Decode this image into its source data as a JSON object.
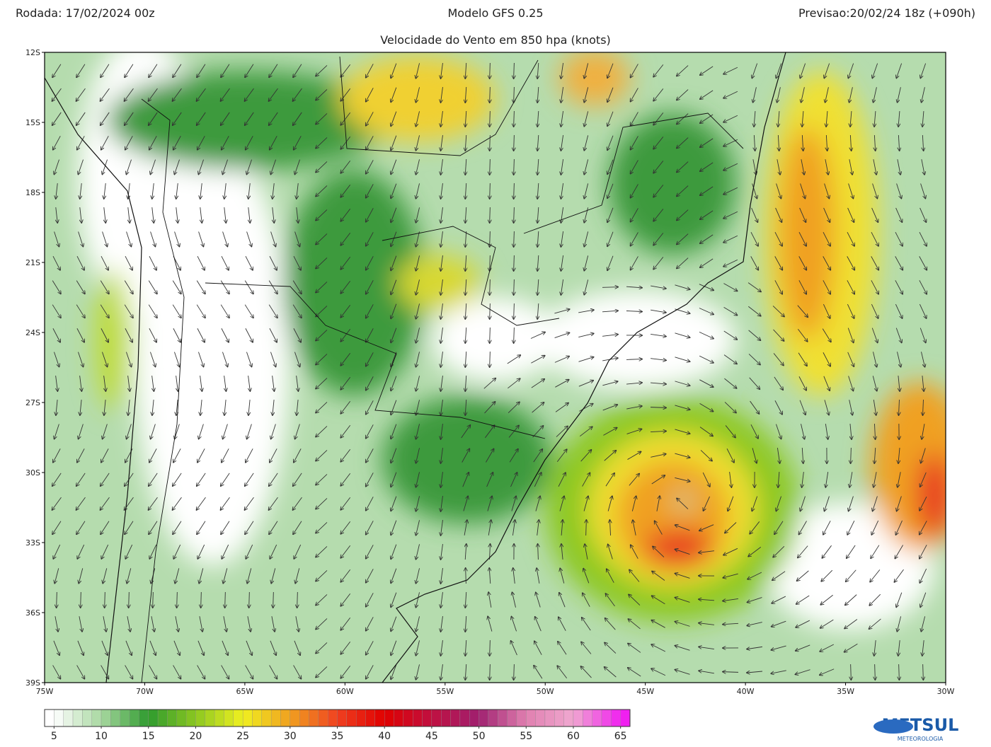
{
  "header": {
    "run": "Rodada: 17/02/2024 00z",
    "model": "Modelo GFS 0.25",
    "forecast": "Previsao:20/02/24 18z (+090h)",
    "subtitle": "Velocidade do Vento em 850 hpa (knots)"
  },
  "map": {
    "lon_range": [
      -75,
      -30
    ],
    "lat_range": [
      -12,
      -39
    ],
    "lat_ticks": [
      {
        "value": -12,
        "label": "12S"
      },
      {
        "value": -15,
        "label": "15S"
      },
      {
        "value": -18,
        "label": "18S"
      },
      {
        "value": -21,
        "label": "21S"
      },
      {
        "value": -24,
        "label": "24S"
      },
      {
        "value": -27,
        "label": "27S"
      },
      {
        "value": -30,
        "label": "30S"
      },
      {
        "value": -33,
        "label": "33S"
      },
      {
        "value": -36,
        "label": "36S"
      },
      {
        "value": -39,
        "label": "39S"
      }
    ],
    "lon_ticks": [
      {
        "value": -75,
        "label": "75W"
      },
      {
        "value": -70,
        "label": "70W"
      },
      {
        "value": -65,
        "label": "65W"
      },
      {
        "value": -60,
        "label": "60W"
      },
      {
        "value": -55,
        "label": "55W"
      },
      {
        "value": -50,
        "label": "50W"
      },
      {
        "value": -45,
        "label": "45W"
      },
      {
        "value": -40,
        "label": "40W"
      },
      {
        "value": -35,
        "label": "35W"
      },
      {
        "value": -30,
        "label": "30W"
      }
    ]
  },
  "colorbar": {
    "range": [
      4,
      66
    ],
    "ticks": [
      5,
      10,
      15,
      20,
      25,
      30,
      35,
      40,
      45,
      50,
      55,
      60,
      65
    ],
    "colors": [
      "#ffffff",
      "#a8d8a0",
      "#2e9a2e",
      "#8cc820",
      "#f0f020",
      "#f0a020",
      "#f04020",
      "#e00000",
      "#c01040",
      "#a02070",
      "#e080b0",
      "#f0a8d0",
      "#f020f0"
    ]
  },
  "logo": {
    "name": "METSUL",
    "tagline": "METEOROLOGIA"
  }
}
